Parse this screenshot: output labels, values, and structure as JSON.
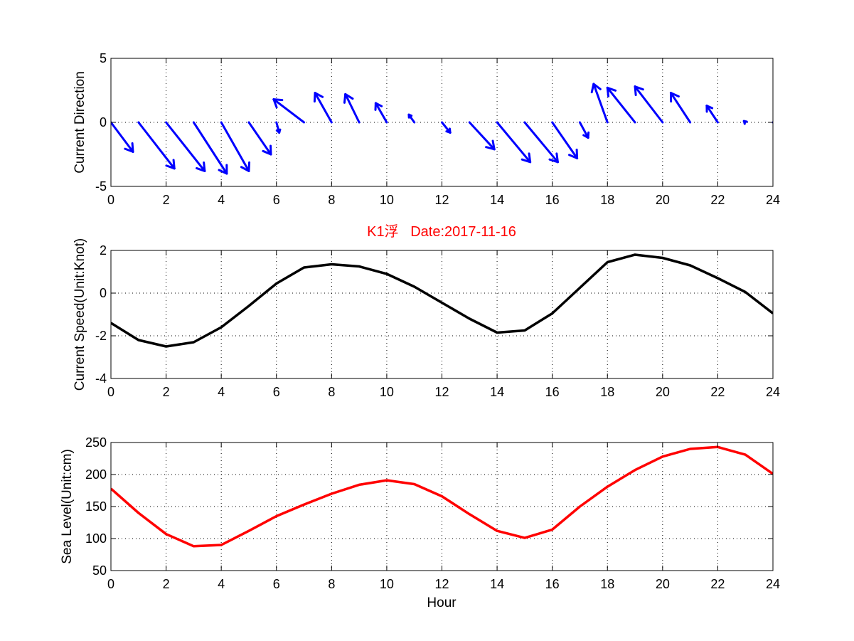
{
  "chart_data": [
    {
      "type": "quiver",
      "ylabel": "Current Direction",
      "xlim": [
        0,
        24
      ],
      "ylim": [
        -5,
        5
      ],
      "xticks": [
        "0",
        "2",
        "4",
        "6",
        "8",
        "10",
        "12",
        "14",
        "16",
        "18",
        "20",
        "22",
        "24"
      ],
      "yticks": [
        "5",
        "0",
        "-5"
      ],
      "grid": true,
      "color": "#0000ff",
      "x": [
        0,
        1,
        2,
        3,
        4,
        5,
        6,
        7,
        8,
        9,
        10,
        11,
        12,
        13,
        14,
        15,
        16,
        17,
        18,
        19,
        20,
        21,
        22,
        23,
        24
      ],
      "u": [
        0.8,
        1.3,
        1.4,
        1.2,
        1.0,
        0.8,
        0.1,
        -1.1,
        -0.6,
        -0.5,
        -0.4,
        -0.2,
        0.3,
        0.9,
        1.2,
        1.2,
        0.9,
        0.3,
        -0.5,
        -1.0,
        -1.0,
        -0.7,
        -0.4,
        -0.05,
        0.0
      ],
      "v": [
        -2.3,
        -3.6,
        -3.8,
        -4.0,
        -3.8,
        -2.5,
        -0.8,
        1.8,
        2.3,
        2.2,
        1.5,
        0.6,
        -0.8,
        -2.1,
        -3.1,
        -3.1,
        -2.8,
        -1.2,
        3.0,
        2.7,
        2.8,
        2.3,
        1.3,
        0.1,
        0.0
      ]
    },
    {
      "type": "line",
      "title": "K1浮   Date:2017-11-16",
      "ylabel": "Current Speed(Unit:Knot)",
      "xlim": [
        0,
        24
      ],
      "ylim": [
        -4,
        2
      ],
      "xticks": [
        "0",
        "2",
        "4",
        "6",
        "8",
        "10",
        "12",
        "14",
        "16",
        "18",
        "20",
        "22",
        "24"
      ],
      "yticks": [
        "2",
        "0",
        "-2",
        "-4"
      ],
      "grid": true,
      "color": "#000000",
      "x": [
        0,
        1,
        2,
        3,
        4,
        5,
        6,
        7,
        8,
        9,
        10,
        11,
        12,
        13,
        14,
        15,
        16,
        17,
        18,
        19,
        20,
        21,
        22,
        23,
        24
      ],
      "y": [
        -1.4,
        -2.2,
        -2.5,
        -2.3,
        -1.6,
        -0.6,
        0.45,
        1.2,
        1.35,
        1.25,
        0.9,
        0.3,
        -0.45,
        -1.2,
        -1.85,
        -1.75,
        -0.95,
        0.25,
        1.45,
        1.8,
        1.65,
        1.3,
        0.7,
        0.05,
        -0.95
      ]
    },
    {
      "type": "line",
      "xlabel": "Hour",
      "ylabel": "Sea Level(Unit:cm)",
      "xlim": [
        0,
        24
      ],
      "ylim": [
        50,
        250
      ],
      "xticks": [
        "0",
        "2",
        "4",
        "6",
        "8",
        "10",
        "12",
        "14",
        "16",
        "18",
        "20",
        "22",
        "24"
      ],
      "yticks": [
        "250",
        "200",
        "150",
        "100",
        "50"
      ],
      "grid": true,
      "color": "#ff0000",
      "x": [
        0,
        1,
        2,
        3,
        4,
        5,
        6,
        7,
        8,
        9,
        10,
        11,
        12,
        13,
        14,
        15,
        16,
        17,
        18,
        19,
        20,
        21,
        22,
        23,
        24
      ],
      "y": [
        178,
        140,
        107,
        88,
        90,
        112,
        135,
        153,
        170,
        184,
        191,
        185,
        166,
        138,
        112,
        101,
        114,
        150,
        181,
        207,
        228,
        240,
        243,
        231,
        201
      ]
    }
  ]
}
